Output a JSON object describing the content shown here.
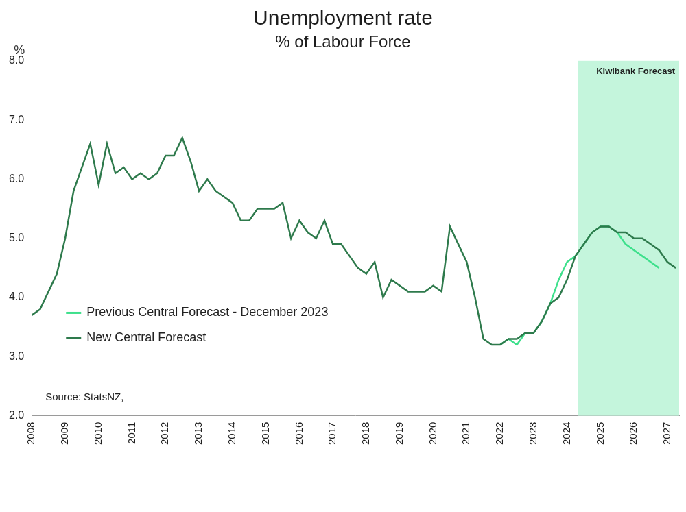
{
  "chart_data": {
    "type": "line",
    "title": "Unemployment rate",
    "subtitle": "% of Labour Force",
    "y_label": "%",
    "source": "Source: StatsNZ,",
    "forecast_region": {
      "label": "Kiwibank Forecast",
      "from": 2024.33,
      "to": 2027.35
    },
    "x": [
      2008,
      2008.25,
      2008.5,
      2008.75,
      2009,
      2009.25,
      2009.5,
      2009.75,
      2010,
      2010.25,
      2010.5,
      2010.75,
      2011,
      2011.25,
      2011.5,
      2011.75,
      2012,
      2012.25,
      2012.5,
      2012.75,
      2013,
      2013.25,
      2013.5,
      2013.75,
      2014,
      2014.25,
      2014.5,
      2014.75,
      2015,
      2015.25,
      2015.5,
      2015.75,
      2016,
      2016.25,
      2016.5,
      2016.75,
      2017,
      2017.25,
      2017.5,
      2017.75,
      2018,
      2018.25,
      2018.5,
      2018.75,
      2019,
      2019.25,
      2019.5,
      2019.75,
      2020,
      2020.25,
      2020.5,
      2020.75,
      2021,
      2021.25,
      2021.5,
      2021.75,
      2022,
      2022.25,
      2022.5,
      2022.75,
      2023,
      2023.25,
      2023.5,
      2023.75,
      2024,
      2024.25,
      2024.5,
      2024.75,
      2025,
      2025.25,
      2025.5,
      2025.75,
      2026,
      2026.25,
      2026.5,
      2026.75,
      2027,
      2027.25
    ],
    "series": [
      {
        "name": "Previous Central Forecast - December 2023",
        "color": "#3ee08c",
        "values": [
          null,
          null,
          null,
          null,
          null,
          null,
          null,
          null,
          null,
          null,
          null,
          null,
          null,
          null,
          null,
          null,
          null,
          null,
          null,
          null,
          null,
          null,
          null,
          null,
          null,
          null,
          null,
          null,
          null,
          null,
          null,
          null,
          null,
          null,
          null,
          null,
          null,
          null,
          null,
          null,
          null,
          null,
          null,
          null,
          null,
          null,
          null,
          null,
          null,
          null,
          null,
          null,
          null,
          null,
          null,
          null,
          3.2,
          3.3,
          3.2,
          3.4,
          3.4,
          3.6,
          3.9,
          4.3,
          4.6,
          4.7,
          4.9,
          5.1,
          5.2,
          5.2,
          5.1,
          4.9,
          4.8,
          4.7,
          4.6,
          4.5,
          null,
          null
        ]
      },
      {
        "name": "New Central Forecast",
        "color": "#2e7a4c",
        "values": [
          3.7,
          3.8,
          4.1,
          4.4,
          5.0,
          5.8,
          6.2,
          6.6,
          5.9,
          6.6,
          6.1,
          6.2,
          6.0,
          6.1,
          6.0,
          6.1,
          6.4,
          6.4,
          6.7,
          6.3,
          5.8,
          6.0,
          5.8,
          5.7,
          5.6,
          5.3,
          5.3,
          5.5,
          5.5,
          5.5,
          5.6,
          5.0,
          5.3,
          5.1,
          5.0,
          5.3,
          4.9,
          4.9,
          4.7,
          4.5,
          4.4,
          4.6,
          4.0,
          4.3,
          4.2,
          4.1,
          4.1,
          4.1,
          4.2,
          4.1,
          5.2,
          4.9,
          4.6,
          4.0,
          3.3,
          3.2,
          3.2,
          3.3,
          3.3,
          3.4,
          3.4,
          3.6,
          3.9,
          4.0,
          4.3,
          4.7,
          4.9,
          5.1,
          5.2,
          5.2,
          5.1,
          5.1,
          5.0,
          5.0,
          4.9,
          4.8,
          4.6,
          4.5
        ]
      }
    ],
    "xlim": [
      2008,
      2027.35
    ],
    "xticks": [
      2008,
      2009,
      2010,
      2011,
      2012,
      2013,
      2014,
      2015,
      2016,
      2017,
      2018,
      2019,
      2020,
      2021,
      2022,
      2023,
      2024,
      2025,
      2026,
      2027
    ],
    "ylim": [
      2,
      8
    ],
    "yticks": [
      {
        "value": 2,
        "label": "2.0"
      },
      {
        "value": 3,
        "label": "3.0"
      },
      {
        "value": 4,
        "label": "4.0"
      },
      {
        "value": 5,
        "label": "5.0"
      },
      {
        "value": 6,
        "label": "6.0"
      },
      {
        "value": 7,
        "label": "7.0"
      },
      {
        "value": 8,
        "label": "8.0"
      }
    ],
    "grid": false,
    "legend": "left"
  }
}
